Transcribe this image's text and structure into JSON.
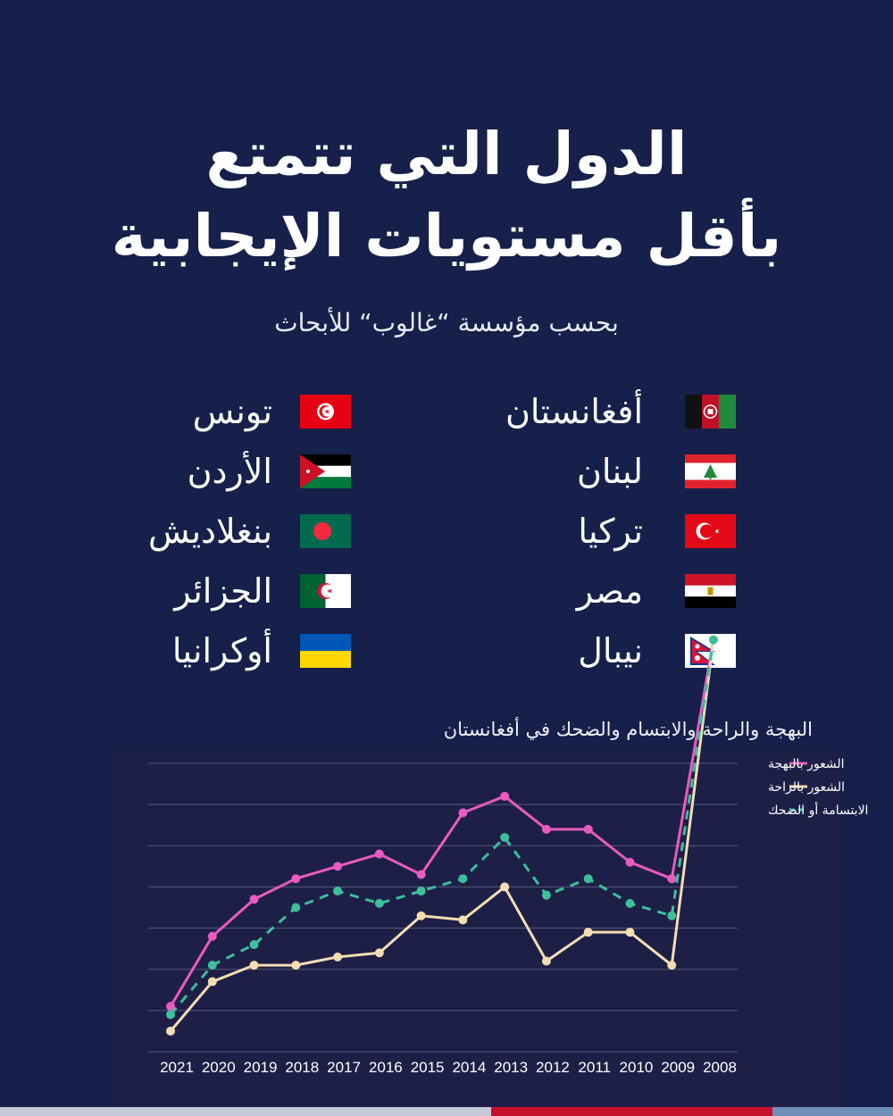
{
  "header": {
    "title_line1": "الدول التي تتمتع",
    "title_line2": "بأقل مستويات الإيجابية",
    "subtitle": "بحسب مؤسسة “غالوب“ للأبحاث"
  },
  "countries_right": [
    {
      "name": "أفغانستان",
      "flag": "afghanistan-flag"
    },
    {
      "name": "لبنان",
      "flag": "lebanon-flag"
    },
    {
      "name": "تركيا",
      "flag": "turkey-flag"
    },
    {
      "name": "مصر",
      "flag": "egypt-flag"
    },
    {
      "name": "نيبال",
      "flag": "nepal-flag"
    }
  ],
  "countries_left": [
    {
      "name": "تونس",
      "flag": "tunisia-flag"
    },
    {
      "name": "الأردن",
      "flag": "jordan-flag"
    },
    {
      "name": "بنغلاديش",
      "flag": "bangladesh-flag"
    },
    {
      "name": "الجزائر",
      "flag": "algeria-flag"
    },
    {
      "name": "أوكرانيا",
      "flag": "ukraine-flag"
    }
  ],
  "chart_data": {
    "type": "line",
    "title": "البهجة والراحة والابتسام والضحك في أفغانستان",
    "categories": [
      "2021",
      "2020",
      "2019",
      "2018",
      "2017",
      "2016",
      "2015",
      "2014",
      "2013",
      "2012",
      "2011",
      "2010",
      "2009",
      "2008"
    ],
    "series": [
      {
        "name": "الشعور بالبهجة",
        "color": "#e85bc0",
        "style": "solid",
        "values": [
          11,
          28,
          37,
          42,
          45,
          48,
          43,
          58,
          62,
          54,
          54,
          46,
          42,
          100
        ]
      },
      {
        "name": "الشعور بالراحة",
        "color": "#f3ddb3",
        "style": "solid",
        "values": [
          5,
          17,
          21,
          21,
          23,
          24,
          33,
          32,
          40,
          22,
          29,
          29,
          21,
          100
        ]
      },
      {
        "name": "الابتسامة أو الضحك",
        "color": "#3cbf9a",
        "style": "dashed",
        "values": [
          9,
          21,
          26,
          35,
          39,
          36,
          39,
          42,
          52,
          38,
          42,
          36,
          33,
          100
        ]
      }
    ],
    "ylim": [
      0,
      70
    ],
    "grid": true,
    "legend_position": "top-right"
  },
  "colors": {
    "background": "#16204a",
    "chart_background": "#1e1f47",
    "gridline": "#5a5a7a"
  }
}
